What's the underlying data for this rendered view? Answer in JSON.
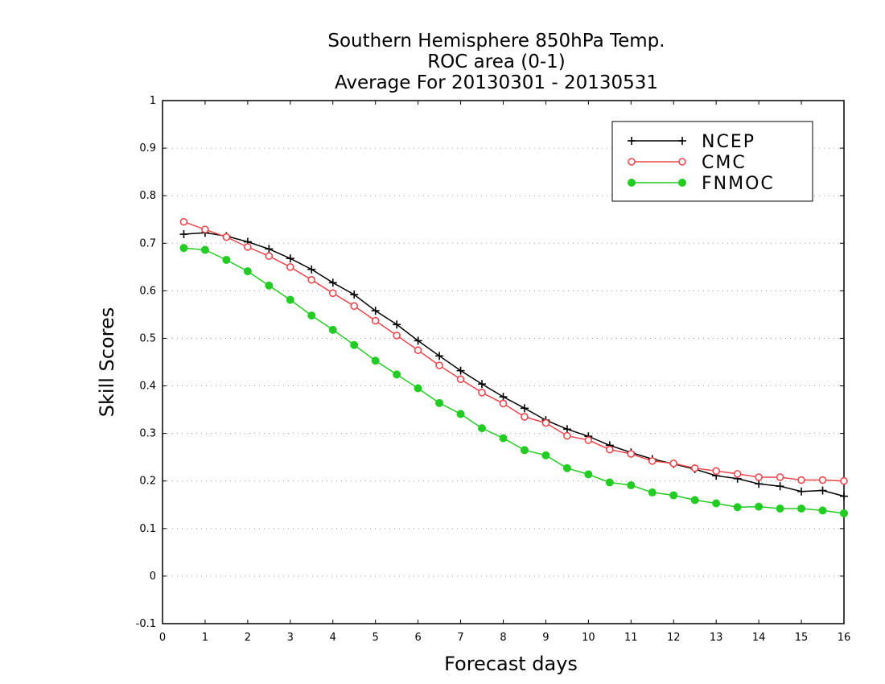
{
  "chart_data": {
    "type": "line",
    "title_lines": [
      "Southern Hemisphere 850hPa Temp.",
      "ROC area (0-1)",
      "Average For 20130301 - 20130531"
    ],
    "xlabel": "Forecast days",
    "ylabel": "Skill Scores",
    "xlim": [
      0,
      16
    ],
    "ylim": [
      -0.1,
      1
    ],
    "x_ticks": [
      "0",
      "1",
      "2",
      "3",
      "4",
      "5",
      "6",
      "7",
      "8",
      "9",
      "10",
      "11",
      "12",
      "13",
      "14",
      "15",
      "16"
    ],
    "y_ticks": [
      "-0.1",
      "0",
      "0.1",
      "0.2",
      "0.3",
      "0.4",
      "0.5",
      "0.6",
      "0.7",
      "0.8",
      "0.9",
      "1"
    ],
    "grid": "horizontal dotted",
    "legend_position": "top-right",
    "x": [
      0.5,
      1,
      1.5,
      2,
      2.5,
      3,
      3.5,
      4,
      4.5,
      5,
      5.5,
      6,
      6.5,
      7,
      7.5,
      8,
      8.5,
      9,
      9.5,
      10,
      10.5,
      11,
      11.5,
      12,
      12.5,
      13,
      13.5,
      14,
      14.5,
      15,
      15.5,
      16
    ],
    "series": [
      {
        "name": "NCEP",
        "color": "#000000",
        "marker": "plus",
        "values": [
          0.719,
          0.722,
          0.715,
          0.703,
          0.688,
          0.668,
          0.645,
          0.617,
          0.592,
          0.558,
          0.529,
          0.495,
          0.463,
          0.432,
          0.404,
          0.377,
          0.353,
          0.328,
          0.309,
          0.294,
          0.275,
          0.26,
          0.246,
          0.236,
          0.225,
          0.211,
          0.205,
          0.194,
          0.189,
          0.178,
          0.18,
          0.168
        ]
      },
      {
        "name": "CMC",
        "color": "#e8474c",
        "marker": "open-circle",
        "values": [
          0.745,
          0.729,
          0.713,
          0.692,
          0.673,
          0.65,
          0.623,
          0.595,
          0.568,
          0.537,
          0.506,
          0.475,
          0.443,
          0.414,
          0.386,
          0.363,
          0.335,
          0.322,
          0.295,
          0.286,
          0.266,
          0.257,
          0.242,
          0.237,
          0.227,
          0.221,
          0.215,
          0.208,
          0.208,
          0.202,
          0.202,
          0.2
        ]
      },
      {
        "name": "FNMOC",
        "color": "#22cc22",
        "marker": "filled-circle",
        "values": [
          0.69,
          0.686,
          0.665,
          0.641,
          0.611,
          0.581,
          0.548,
          0.518,
          0.486,
          0.453,
          0.424,
          0.395,
          0.364,
          0.341,
          0.311,
          0.29,
          0.265,
          0.254,
          0.227,
          0.214,
          0.197,
          0.191,
          0.176,
          0.17,
          0.16,
          0.153,
          0.145,
          0.146,
          0.142,
          0.142,
          0.138,
          0.132
        ]
      }
    ]
  }
}
